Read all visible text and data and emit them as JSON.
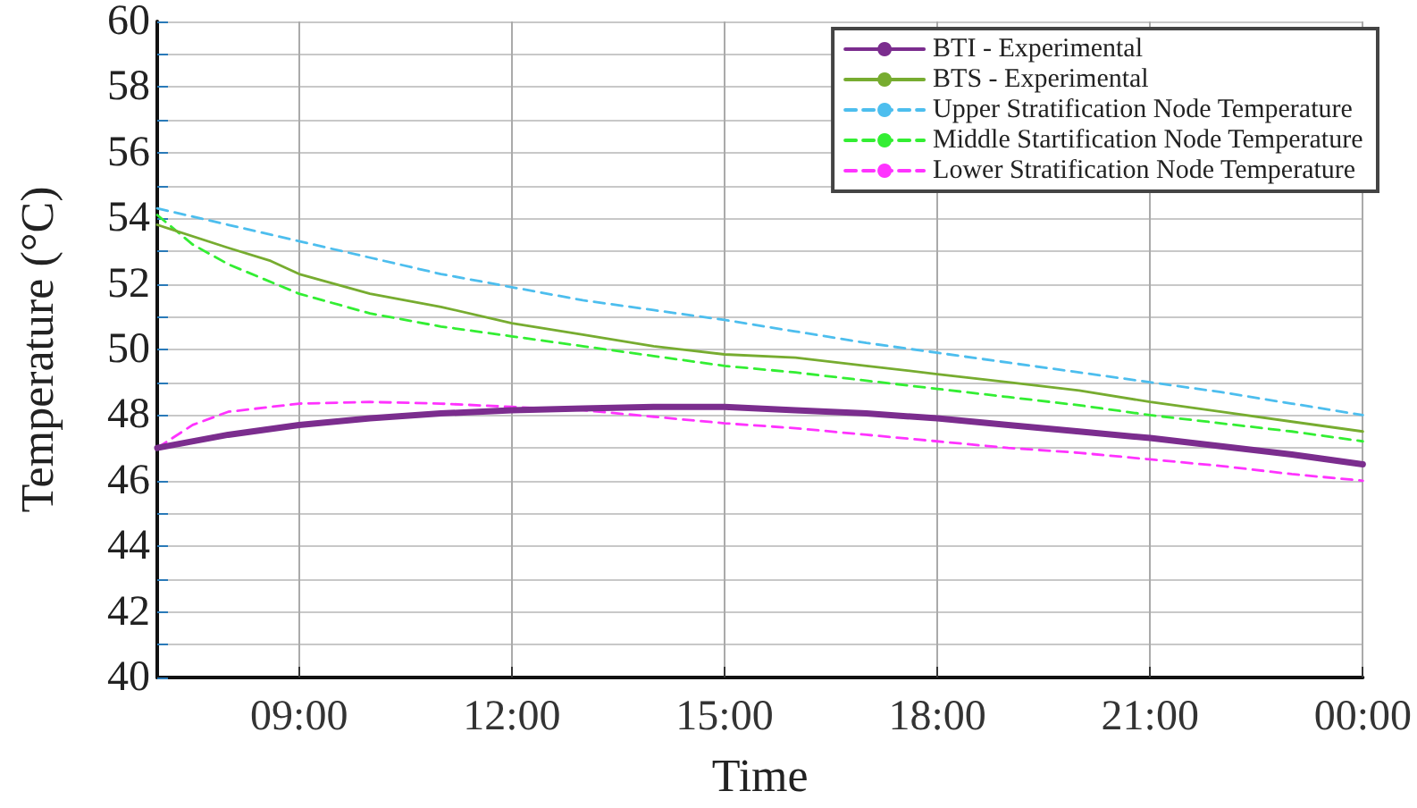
{
  "chart_data": {
    "type": "line",
    "xlabel": "Time",
    "ylabel": "Temperature (°C)",
    "xlim": [
      7,
      24
    ],
    "xticks": [
      {
        "value": 9,
        "label": "09:00"
      },
      {
        "value": 12,
        "label": "12:00"
      },
      {
        "value": 15,
        "label": "15:00"
      },
      {
        "value": 18,
        "label": "18:00"
      },
      {
        "value": 21,
        "label": "21:00"
      },
      {
        "value": 24,
        "label": "00:00"
      }
    ],
    "ylim": [
      40,
      60
    ],
    "yticks": [
      40,
      {
        "value": 41,
        "label": null
      },
      42,
      {
        "value": 43,
        "label": null
      },
      44,
      {
        "value": 45,
        "label": null
      },
      46,
      {
        "value": 47,
        "label": null
      },
      48,
      {
        "value": 49,
        "label": null
      },
      50,
      {
        "value": 51,
        "label": null
      },
      52,
      {
        "value": 53,
        "label": null
      },
      54,
      {
        "value": 55,
        "label": null
      },
      56,
      {
        "value": 57,
        "label": null
      },
      58,
      {
        "value": 59,
        "label": null
      },
      60
    ],
    "grid": true,
    "legend": "top right",
    "marker": "none",
    "series": [
      {
        "name": "BTI - Experimental",
        "color": "#7b2d8e",
        "line_style": "solid",
        "x": [
          7,
          8,
          9,
          10,
          11,
          12,
          13,
          14,
          15,
          16,
          17,
          18,
          19,
          20,
          21,
          22,
          23,
          24
        ],
        "values": [
          47.0,
          47.4,
          47.7,
          47.9,
          48.05,
          48.15,
          48.2,
          48.25,
          48.25,
          48.15,
          48.05,
          47.9,
          47.7,
          47.5,
          47.3,
          47.05,
          46.8,
          46.5
        ]
      },
      {
        "name": "BTS - Experimental",
        "color": "#77ac30",
        "line_style": "solid",
        "x": [
          7,
          8,
          8.6,
          9,
          10,
          11,
          12,
          13,
          14,
          15,
          16,
          17,
          18,
          19,
          20,
          21,
          22,
          23,
          24
        ],
        "values": [
          53.8,
          53.1,
          52.7,
          52.3,
          51.7,
          51.3,
          50.8,
          50.45,
          50.1,
          49.85,
          49.75,
          49.5,
          49.25,
          49.0,
          48.75,
          48.4,
          48.1,
          47.8,
          47.5
        ]
      },
      {
        "name": "Upper Stratification Node Temperature",
        "color": "#4dbeee",
        "line_style": "dashed",
        "x": [
          7,
          8,
          9,
          10,
          11,
          12,
          13,
          14,
          15,
          16,
          17,
          18,
          19,
          20,
          21,
          22,
          23,
          24
        ],
        "values": [
          54.3,
          53.8,
          53.3,
          52.8,
          52.3,
          51.9,
          51.5,
          51.2,
          50.9,
          50.55,
          50.2,
          49.9,
          49.6,
          49.3,
          49.0,
          48.7,
          48.35,
          48.0
        ]
      },
      {
        "name": "Middle Startification Node Temperature",
        "color": "#33ee33",
        "line_style": "dashed",
        "x": [
          7,
          7.5,
          8,
          9,
          10,
          11,
          12,
          13,
          14,
          15,
          16,
          17,
          18,
          19,
          20,
          21,
          22,
          23,
          24
        ],
        "values": [
          54.1,
          53.2,
          52.6,
          51.7,
          51.1,
          50.7,
          50.4,
          50.1,
          49.8,
          49.5,
          49.3,
          49.05,
          48.8,
          48.55,
          48.3,
          48.0,
          47.75,
          47.5,
          47.2
        ]
      },
      {
        "name": "Lower Stratification Node Temperature",
        "color": "#ff33ff",
        "line_style": "dashed",
        "x": [
          7,
          7.5,
          8,
          9,
          10,
          11,
          12,
          13,
          14,
          15,
          16,
          17,
          18,
          19,
          20,
          21,
          22,
          23,
          24
        ],
        "values": [
          47.0,
          47.7,
          48.1,
          48.35,
          48.4,
          48.35,
          48.25,
          48.15,
          47.95,
          47.75,
          47.6,
          47.4,
          47.2,
          47.0,
          46.85,
          46.65,
          46.45,
          46.2,
          46.0
        ]
      }
    ]
  }
}
